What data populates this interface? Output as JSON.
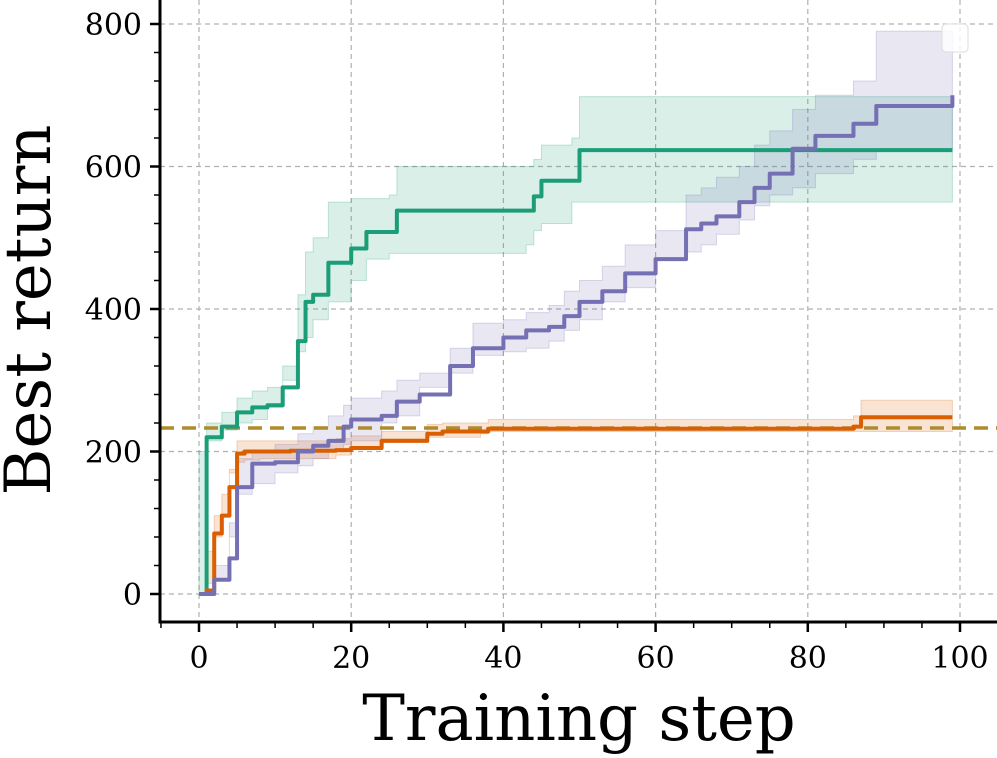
{
  "chart_data": {
    "type": "line",
    "title": "",
    "xlabel": "Training step",
    "ylabel": "Best return",
    "xlim": [
      -5,
      104
    ],
    "ylim": [
      -40,
      800
    ],
    "xticks": [
      0,
      20,
      40,
      60,
      80,
      100
    ],
    "yticks": [
      0,
      200,
      400,
      600,
      800
    ],
    "grid": true,
    "legend": "top-right (empty, no labels)",
    "reference_line": {
      "y": 233,
      "style": "dashed",
      "color": "#b08a2e"
    },
    "series": [
      {
        "color": "#1b9e77",
        "x": [
          0,
          1,
          3,
          5,
          7,
          9,
          11,
          13,
          14,
          15,
          17,
          20,
          22,
          25,
          26,
          29,
          35,
          43,
          44,
          45,
          49,
          50,
          99
        ],
        "y": [
          0,
          220,
          235,
          255,
          262,
          265,
          290,
          355,
          410,
          420,
          465,
          485,
          508,
          508,
          538,
          538,
          538,
          538,
          558,
          580,
          580,
          623,
          623
        ],
        "lower": [
          0,
          200,
          215,
          230,
          240,
          245,
          262,
          300,
          340,
          360,
          385,
          410,
          440,
          470,
          478,
          478,
          478,
          478,
          490,
          510,
          520,
          550,
          550
        ],
        "upper": [
          0,
          240,
          255,
          275,
          285,
          290,
          320,
          420,
          480,
          500,
          550,
          555,
          555,
          560,
          600,
          600,
          600,
          600,
          610,
          630,
          640,
          698,
          698
        ]
      },
      {
        "color": "#d95f02",
        "x": [
          0,
          1,
          2,
          3,
          4,
          5,
          6,
          8,
          12,
          18,
          20,
          24,
          30,
          32,
          37,
          38,
          86,
          87,
          99
        ],
        "y": [
          0,
          5,
          85,
          110,
          150,
          197,
          200,
          200,
          201,
          202,
          205,
          215,
          225,
          228,
          228,
          232,
          235,
          248,
          248
        ],
        "lower": [
          0,
          0,
          60,
          80,
          110,
          170,
          185,
          188,
          190,
          190,
          195,
          205,
          218,
          220,
          220,
          225,
          228,
          228,
          228
        ],
        "upper": [
          0,
          15,
          110,
          140,
          175,
          215,
          215,
          215,
          215,
          218,
          222,
          228,
          238,
          240,
          240,
          245,
          250,
          272,
          272
        ]
      },
      {
        "color": "#7570b3",
        "x": [
          0,
          2,
          4,
          5,
          7,
          10,
          13,
          15,
          17,
          19,
          20,
          24,
          26,
          29,
          33,
          36,
          40,
          43,
          46,
          48,
          50,
          53,
          56,
          60,
          64,
          66,
          68,
          71,
          73,
          75,
          78,
          81,
          86,
          89,
          99
        ],
        "y": [
          0,
          20,
          50,
          150,
          183,
          185,
          200,
          208,
          215,
          235,
          245,
          250,
          270,
          280,
          320,
          345,
          360,
          370,
          375,
          390,
          410,
          425,
          450,
          470,
          512,
          520,
          530,
          550,
          570,
          590,
          625,
          643,
          660,
          685,
          700
        ],
        "lower": [
          0,
          0,
          20,
          100,
          140,
          155,
          170,
          180,
          190,
          200,
          210,
          215,
          240,
          250,
          290,
          310,
          335,
          340,
          345,
          355,
          370,
          385,
          410,
          430,
          470,
          480,
          490,
          505,
          525,
          545,
          560,
          570,
          590,
          610,
          625
        ],
        "upper": [
          0,
          40,
          80,
          190,
          200,
          210,
          225,
          235,
          250,
          265,
          275,
          285,
          300,
          310,
          345,
          380,
          385,
          395,
          405,
          425,
          440,
          460,
          490,
          510,
          560,
          570,
          585,
          600,
          630,
          650,
          680,
          700,
          720,
          790,
          790
        ]
      }
    ]
  }
}
